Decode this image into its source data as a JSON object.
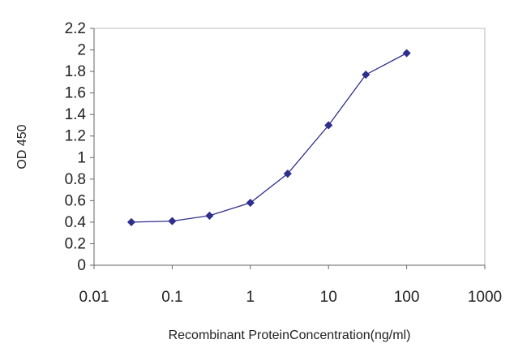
{
  "chart_data": {
    "type": "line",
    "xlabel": "Recombinant ProteinConcentration(ng/ml)",
    "ylabel": "OD 450",
    "x_scale": "log",
    "xlim": [
      0.01,
      1000
    ],
    "ylim": [
      0,
      2.2
    ],
    "x_ticks": [
      0.01,
      0.1,
      1,
      10,
      100,
      1000
    ],
    "x_tick_labels": [
      "0.01",
      "0.1",
      "1",
      "10",
      "100",
      "1000"
    ],
    "y_ticks": [
      0,
      0.2,
      0.4,
      0.6,
      0.8,
      1,
      1.2,
      1.4,
      1.6,
      1.8,
      2,
      2.2
    ],
    "y_tick_labels": [
      "0",
      "0.2",
      "0.4",
      "0.6",
      "0.8",
      "1",
      "1.2",
      "1.4",
      "1.6",
      "1.8",
      "2",
      "2.2"
    ],
    "grid": false,
    "series": [
      {
        "color": "#2e2e8c",
        "marker": "diamond",
        "x": [
          0.03,
          0.1,
          0.3,
          1,
          3,
          10,
          30,
          100
        ],
        "y": [
          0.4,
          0.41,
          0.46,
          0.58,
          0.85,
          1.3,
          1.77,
          1.97
        ]
      }
    ]
  }
}
